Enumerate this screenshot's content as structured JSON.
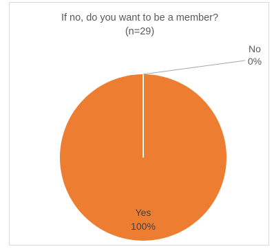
{
  "chart_data": {
    "type": "pie",
    "title": "If no, do you want to be a member?",
    "subtitle": "(n=29)",
    "slices": [
      {
        "label": "No",
        "value": 0,
        "display": "0%",
        "color": "#a5a5a5"
      },
      {
        "label": "Yes",
        "value": 100,
        "display": "100%",
        "color": "#ed7d31"
      }
    ],
    "legend": "none"
  }
}
